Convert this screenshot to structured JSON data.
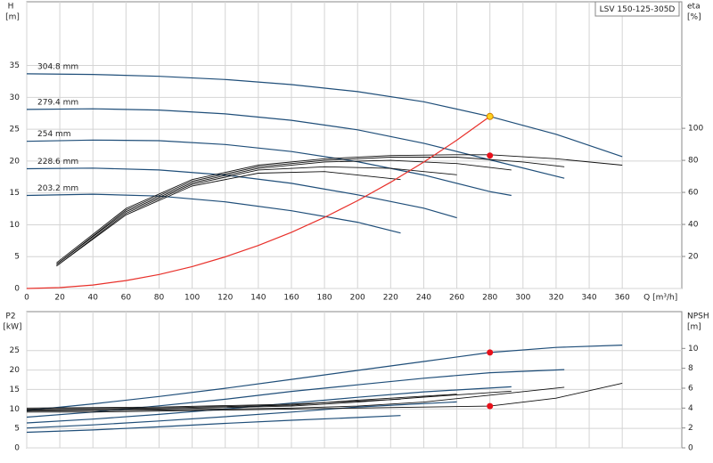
{
  "chart_data": [
    {
      "type": "line",
      "title": "LSV 150-125-305D",
      "ylabel": "H",
      "yunit": "[m]",
      "y2label": "eta",
      "y2unit": "[%]",
      "xlabel": "Q [m³/h]",
      "xlim": [
        0,
        396
      ],
      "xticks": [
        0,
        20,
        40,
        60,
        80,
        100,
        120,
        140,
        160,
        180,
        200,
        220,
        240,
        260,
        280,
        300,
        320,
        340,
        360
      ],
      "ylim": [
        0,
        45
      ],
      "yticks": [
        0,
        5,
        10,
        15,
        20,
        25,
        30,
        35
      ],
      "y2lim": [
        0,
        179
      ],
      "y2ticks": [
        20,
        40,
        60,
        80,
        100
      ],
      "grid": true,
      "series": [
        {
          "name": "304.8 mm",
          "color": "#1f4e79",
          "x": [
            0,
            40,
            80,
            120,
            160,
            200,
            240,
            280,
            320,
            360
          ],
          "values": [
            33.7,
            33.6,
            33.3,
            32.8,
            32.0,
            30.9,
            29.3,
            27.0,
            24.2,
            20.7
          ]
        },
        {
          "name": "279.4 mm",
          "color": "#1f4e79",
          "x": [
            0,
            40,
            80,
            120,
            160,
            200,
            240,
            280,
            325
          ],
          "values": [
            28.1,
            28.2,
            28.0,
            27.4,
            26.4,
            24.9,
            22.8,
            20.2,
            17.3
          ]
        },
        {
          "name": "254 mm",
          "color": "#1f4e79",
          "x": [
            0,
            40,
            80,
            120,
            160,
            200,
            240,
            280,
            293
          ],
          "values": [
            23.1,
            23.3,
            23.2,
            22.6,
            21.5,
            19.9,
            17.8,
            15.2,
            14.6
          ]
        },
        {
          "name": "228.6 mm",
          "color": "#1f4e79",
          "x": [
            0,
            40,
            80,
            120,
            160,
            200,
            240,
            260
          ],
          "values": [
            18.8,
            18.9,
            18.6,
            17.8,
            16.5,
            14.7,
            12.6,
            11.1
          ]
        },
        {
          "name": "203.2 mm",
          "color": "#1f4e79",
          "x": [
            0,
            40,
            80,
            120,
            160,
            200,
            226
          ],
          "values": [
            14.6,
            14.8,
            14.5,
            13.6,
            12.2,
            10.4,
            8.7
          ]
        },
        {
          "color": "#111111",
          "axis": "y2",
          "x": [
            18,
            60,
            100,
            140,
            180,
            220,
            260,
            280,
            320,
            360
          ],
          "values": [
            16,
            50,
            68,
            77,
            81,
            83,
            83.5,
            83.5,
            81,
            77
          ]
        },
        {
          "color": "#111111",
          "axis": "y2",
          "x": [
            18,
            60,
            100,
            140,
            180,
            220,
            260,
            300,
            325
          ],
          "values": [
            15,
            49,
            67,
            76,
            80,
            82,
            82,
            79,
            76
          ]
        },
        {
          "color": "#111111",
          "axis": "y2",
          "x": [
            18,
            60,
            100,
            140,
            180,
            220,
            260,
            293
          ],
          "values": [
            15,
            48,
            66,
            75,
            79,
            80,
            78,
            74
          ]
        },
        {
          "color": "#111111",
          "axis": "y2",
          "x": [
            18,
            60,
            100,
            140,
            180,
            220,
            260
          ],
          "values": [
            14,
            47,
            65,
            74,
            76,
            75,
            71
          ]
        },
        {
          "color": "#111111",
          "axis": "y2",
          "x": [
            18,
            60,
            100,
            140,
            180,
            226
          ],
          "values": [
            14,
            46,
            64,
            72,
            73,
            68
          ]
        },
        {
          "color": "#e8302a",
          "x": [
            0,
            20,
            40,
            60,
            80,
            100,
            120,
            140,
            160,
            180,
            200,
            220,
            240,
            260,
            280
          ],
          "values": [
            0,
            0.14,
            0.55,
            1.24,
            2.2,
            3.44,
            4.96,
            6.75,
            8.82,
            11.16,
            13.78,
            16.67,
            19.84,
            23.28,
            27.0
          ]
        }
      ],
      "points": [
        {
          "x": 280,
          "y": 27.0,
          "color": "#ffd21f"
        },
        {
          "x": 280,
          "y": 83,
          "color": "#e8101a",
          "axis": "y2"
        }
      ]
    },
    {
      "type": "line",
      "ylabel": "P2",
      "yunit": "[kW]",
      "y2label": "NPSH",
      "y2unit": "[m]",
      "xlim": [
        0,
        396
      ],
      "xticks": [
        0,
        20,
        40,
        60,
        80,
        100,
        120,
        140,
        160,
        180,
        200,
        220,
        240,
        260,
        280,
        300,
        320,
        340,
        360
      ],
      "ylim": [
        0,
        35
      ],
      "yticks": [
        0,
        5,
        10,
        15,
        20,
        25
      ],
      "y2lim": [
        0,
        13.7
      ],
      "y2ticks": [
        0,
        2,
        4,
        6,
        8,
        10
      ],
      "grid": true,
      "series": [
        {
          "color": "#1f4e79",
          "x": [
            0,
            40,
            80,
            120,
            160,
            200,
            240,
            280,
            320,
            360
          ],
          "values": [
            9.6,
            11.3,
            13.2,
            15.3,
            17.6,
            19.9,
            22.2,
            24.5,
            25.8,
            26.4
          ]
        },
        {
          "color": "#1f4e79",
          "x": [
            0,
            40,
            80,
            120,
            160,
            200,
            240,
            280,
            325
          ],
          "values": [
            7.9,
            9.2,
            10.8,
            12.5,
            14.5,
            16.2,
            17.9,
            19.3,
            20.1
          ]
        },
        {
          "color": "#1f4e79",
          "x": [
            0,
            40,
            80,
            120,
            160,
            200,
            240,
            293
          ],
          "values": [
            6.4,
            7.4,
            8.6,
            10,
            11.5,
            13,
            14.4,
            15.7
          ]
        },
        {
          "color": "#1f4e79",
          "x": [
            0,
            40,
            80,
            120,
            160,
            200,
            260
          ],
          "values": [
            5.1,
            5.9,
            6.9,
            8,
            9.2,
            10.5,
            11.8
          ]
        },
        {
          "color": "#1f4e79",
          "x": [
            0,
            40,
            80,
            120,
            160,
            200,
            226
          ],
          "values": [
            4,
            4.6,
            5.4,
            6.3,
            7.1,
            7.8,
            8.3
          ]
        },
        {
          "color": "#111111",
          "axis": "y2",
          "x": [
            0,
            40,
            80,
            120,
            160,
            200,
            240,
            280,
            320,
            360
          ],
          "values": [
            3.6,
            3.6,
            3.7,
            3.8,
            3.9,
            4.0,
            4.1,
            4.2,
            5.0,
            6.5
          ]
        },
        {
          "color": "#111111",
          "axis": "y2",
          "x": [
            0,
            80,
            160,
            200,
            240,
            280,
            325
          ],
          "values": [
            3.7,
            3.8,
            4.0,
            4.2,
            4.6,
            5.3,
            6.1
          ]
        },
        {
          "color": "#111111",
          "axis": "y2",
          "x": [
            0,
            80,
            160,
            200,
            240,
            293
          ],
          "values": [
            3.8,
            3.9,
            4.2,
            4.6,
            5.1,
            5.7
          ]
        },
        {
          "color": "#111111",
          "axis": "y2",
          "x": [
            0,
            80,
            160,
            200,
            260
          ],
          "values": [
            3.9,
            4.0,
            4.3,
            4.8,
            5.4
          ]
        },
        {
          "color": "#111111",
          "axis": "y2",
          "x": [
            0,
            80,
            160,
            226
          ],
          "values": [
            4.0,
            4.1,
            4.4,
            4.9
          ]
        }
      ],
      "points": [
        {
          "x": 280,
          "y": 24.5,
          "color": "#e8101a"
        },
        {
          "x": 280,
          "y": 4.2,
          "color": "#e8101a",
          "axis": "y2"
        }
      ]
    }
  ]
}
